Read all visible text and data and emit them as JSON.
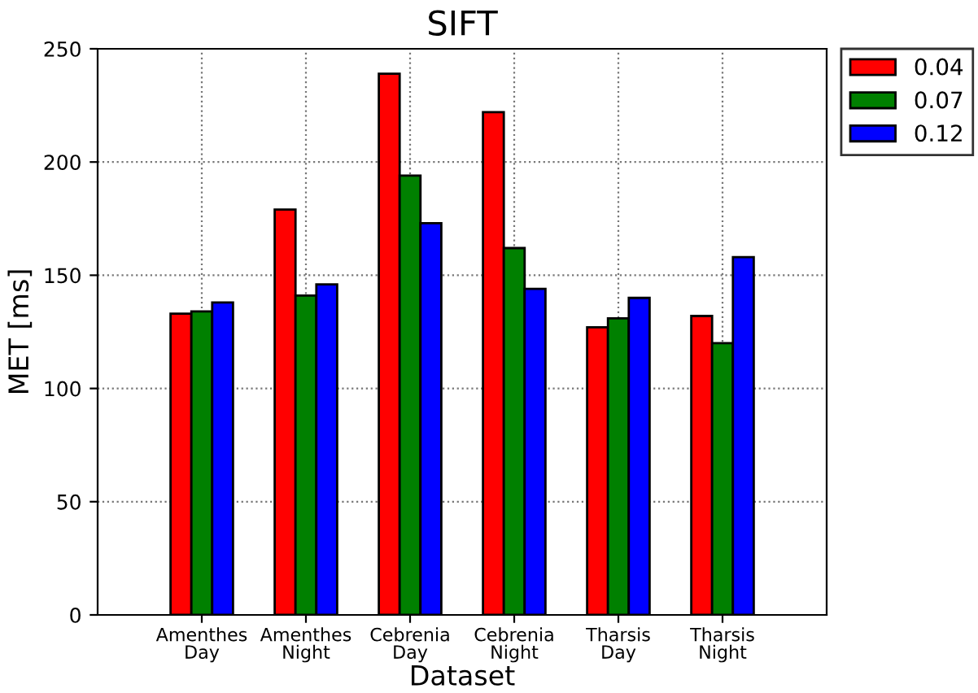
{
  "chart_data": {
    "type": "bar",
    "title": "SIFT",
    "xlabel": "Dataset",
    "ylabel": "MET [ms]",
    "categories": [
      "Amenthes\nDay",
      "Amenthes\nNight",
      "Cebrenia\nDay",
      "Cebrenia\nNight",
      "Tharsis\nDay",
      "Tharsis\nNight"
    ],
    "series": [
      {
        "name": "0.04",
        "color": "#ff0000",
        "values": [
          133,
          179,
          239,
          222,
          127,
          132
        ]
      },
      {
        "name": "0.07",
        "color": "#008000",
        "values": [
          134,
          141,
          194,
          162,
          131,
          120
        ]
      },
      {
        "name": "0.12",
        "color": "#0000ff",
        "values": [
          138,
          146,
          173,
          144,
          140,
          158
        ]
      }
    ],
    "ylim": [
      0,
      250
    ],
    "yticks": [
      0,
      50,
      100,
      150,
      200,
      250
    ],
    "grid": true,
    "legend": "right"
  }
}
